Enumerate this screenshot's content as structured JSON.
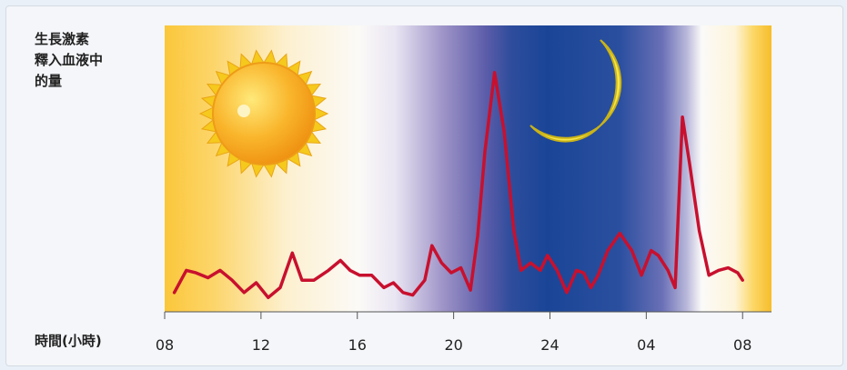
{
  "chart_data": {
    "type": "line",
    "ylabel_lines": [
      "生長激素",
      "釋入血液中",
      "的量"
    ],
    "xlabel": "時間(小時)",
    "x_ticks": [
      "08",
      "12",
      "16",
      "20",
      "24",
      "04",
      "08"
    ],
    "x_tick_hours": [
      8,
      12,
      16,
      20,
      24,
      28,
      32
    ],
    "xlim": [
      8,
      33.2
    ],
    "ylim": [
      0,
      100
    ],
    "colors": {
      "line": "#c8102e",
      "day": "#fbc73a",
      "night": "#16469a"
    },
    "icons": [
      "sun-icon",
      "moon-icon"
    ],
    "series": [
      {
        "x": [
          8.4,
          8.9,
          9.3,
          9.8,
          10.3,
          10.8,
          11.3,
          11.8,
          12.3,
          12.8,
          13.3,
          13.7,
          14.2,
          14.8,
          15.3,
          15.7,
          16.1,
          16.6,
          17.1,
          17.5,
          17.9,
          18.3,
          18.8,
          19.1,
          19.5,
          19.9,
          20.3,
          20.7,
          21.0,
          21.3,
          21.7,
          22.1,
          22.5,
          22.8,
          23.2,
          23.6,
          23.9,
          24.3,
          24.7,
          25.1,
          25.4,
          25.7,
          26.0,
          26.4,
          26.9,
          27.4,
          27.8,
          28.2,
          28.5,
          28.9,
          29.2,
          29.5,
          29.8,
          30.2,
          30.6,
          31.0,
          31.4,
          31.8,
          32.0
        ],
        "y": [
          3,
          12,
          11,
          9,
          12,
          8,
          3,
          7,
          1,
          5,
          19,
          8,
          8,
          12,
          16,
          12,
          10,
          10,
          5,
          7,
          3,
          2,
          8,
          22,
          15,
          11,
          13,
          4,
          26,
          60,
          92,
          68,
          28,
          12,
          15,
          12,
          18,
          12,
          3,
          12,
          11,
          5,
          10,
          20,
          27,
          20,
          10,
          20,
          18,
          12,
          5,
          74,
          55,
          28,
          10,
          12,
          13,
          11,
          8
        ]
      }
    ]
  }
}
